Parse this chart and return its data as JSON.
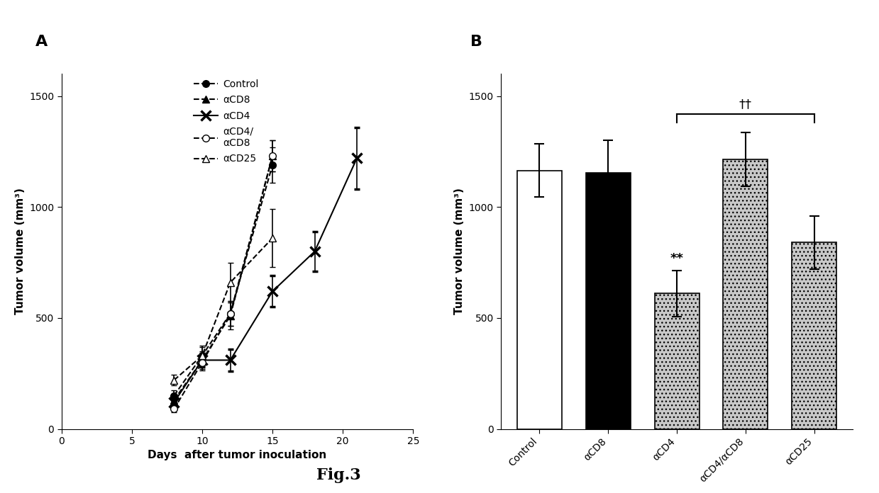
{
  "panel_A": {
    "xlabel": "Days  after tumor inoculation",
    "ylabel": "Tumor volume (mm³)",
    "xlim": [
      0,
      25
    ],
    "ylim": [
      0,
      1600
    ],
    "yticks": [
      0,
      500,
      1000,
      1500
    ],
    "xticks": [
      0,
      5,
      10,
      15,
      20,
      25
    ],
    "series": {
      "Control": {
        "x": [
          8,
          10,
          12,
          15
        ],
        "y": [
          150,
          330,
          520,
          1190
        ],
        "yerr": [
          25,
          45,
          55,
          80
        ],
        "color": "black",
        "linestyle": "--",
        "marker": "o",
        "markerfacecolor": "black",
        "markersize": 7
      },
      "aCD8": {
        "x": [
          8,
          10,
          12,
          15
        ],
        "y": [
          130,
          310,
          510,
          1230
        ],
        "yerr": [
          20,
          40,
          60,
          70
        ],
        "color": "black",
        "linestyle": "--",
        "marker": "^",
        "markerfacecolor": "black",
        "markersize": 7
      },
      "aCD4": {
        "x": [
          8,
          10,
          12,
          15,
          18,
          21
        ],
        "y": [
          120,
          310,
          310,
          620,
          800,
          1220
        ],
        "yerr": [
          15,
          30,
          50,
          70,
          90,
          140
        ],
        "color": "black",
        "linestyle": "-",
        "marker": "x",
        "markerfacecolor": "black",
        "markersize": 10,
        "markeredgewidth": 2.5
      },
      "aCD4/aCD8": {
        "x": [
          8,
          10,
          12,
          15
        ],
        "y": [
          90,
          300,
          520,
          1230
        ],
        "yerr": [
          15,
          35,
          55,
          70
        ],
        "color": "black",
        "linestyle": "--",
        "marker": "o",
        "markerfacecolor": "white",
        "markersize": 7
      },
      "aCD25": {
        "x": [
          8,
          10,
          12,
          15
        ],
        "y": [
          220,
          330,
          660,
          860
        ],
        "yerr": [
          25,
          40,
          90,
          130
        ],
        "color": "black",
        "linestyle": "--",
        "marker": "^",
        "markerfacecolor": "white",
        "markersize": 7
      }
    },
    "legend_labels": [
      "Control",
      "αCD8",
      "αCD4",
      "αCD4/\nαCD8",
      "αCD25"
    ]
  },
  "panel_B": {
    "ylabel": "Tumor volume (mm³)",
    "ylim": [
      0,
      1600
    ],
    "yticks": [
      0,
      500,
      1000,
      1500
    ],
    "categories": [
      "Control",
      "αCD8",
      "αCD4",
      "αCD4/αCD8",
      "αCD25"
    ],
    "values": [
      1165,
      1155,
      610,
      1215,
      840
    ],
    "errors": [
      120,
      145,
      105,
      120,
      120
    ],
    "bar_colors": [
      "white",
      "black",
      "#8c8c8c",
      "#8c8c8c",
      "#8c8c8c"
    ],
    "bar_edgecolor": "black",
    "significance_label": "**",
    "dagger_label": "††",
    "dagger_x1_idx": 2,
    "dagger_x2_idx": 4
  },
  "fig_label": "Fig.3",
  "background_color": "white"
}
